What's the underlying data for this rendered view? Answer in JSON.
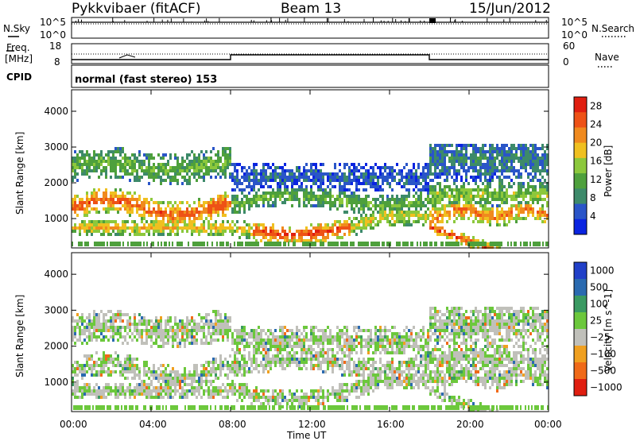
{
  "header": {
    "station": "Pykkvibaer (fitACF)",
    "beam": "Beam 13",
    "date": "15/Jun/2012"
  },
  "strips": {
    "nsky_label": "N.Sky",
    "nsearch_label": "N.Search",
    "freq_label": "Freq.",
    "freq_unit": "[MHz]",
    "nave_label": "Nave",
    "cpid_label": "CPID",
    "cpid_text": "normal (fast stereo) 153",
    "noise_ticks": [
      "10^5",
      "10^0"
    ],
    "freq_ticks": [
      "18",
      "8"
    ],
    "nave_ticks": [
      "60",
      "0"
    ]
  },
  "time_axis": {
    "label": "Time UT",
    "ticks": [
      "00:00",
      "04:00",
      "08:00",
      "12:00",
      "16:00",
      "20:00",
      "00:00"
    ]
  },
  "chart_data": [
    {
      "type": "heatmap",
      "title": "",
      "xlabel": "Time UT",
      "ylabel": "Slant Range [km]",
      "x_range": [
        "00:00",
        "24:00"
      ],
      "ylim": [
        180,
        4600
      ],
      "yticks": [
        1000,
        2000,
        3000,
        4000
      ],
      "colorbar": {
        "label": "Power [dB]",
        "ticks": [
          4,
          8,
          12,
          16,
          20,
          24,
          28
        ],
        "range": [
          0,
          30
        ],
        "colors": [
          "#0a24e0",
          "#2a55c8",
          "#3d8a6a",
          "#4ea03c",
          "#8cc83c",
          "#f0c020",
          "#f08a1e",
          "#ee5216",
          "#e01e10"
        ]
      },
      "echo_bands": [
        {
          "name": "",
          "t_start": 0.0,
          "t_end": 8.0,
          "range_km": 1400,
          "power_db": 24
        },
        {
          "name": "",
          "t_start": 8.5,
          "t_end": 14.0,
          "range_km": 600,
          "power_db": 26
        },
        {
          "name": "",
          "t_start": 8.5,
          "t_end": 18.0,
          "range_km": 1500,
          "power_db": 14
        },
        {
          "name": "",
          "t_start": 18.0,
          "t_end": 24.0,
          "range_km": 1200,
          "power_db": 22
        }
      ]
    },
    {
      "type": "heatmap",
      "title": "",
      "xlabel": "Time UT",
      "ylabel": "Slant Range [km]",
      "x_range": [
        "00:00",
        "24:00"
      ],
      "ylim": [
        180,
        4600
      ],
      "yticks": [
        1000,
        2000,
        3000,
        4000
      ],
      "colorbar": {
        "label": "Velocity [m s^-1]",
        "ticks": [
          1000,
          500,
          100,
          25,
          -25,
          -100,
          -500,
          -1000
        ],
        "colors": [
          "#2140c8",
          "#2a6ab0",
          "#3a9a62",
          "#6cc83c",
          "#c0c0ba",
          "#f0a020",
          "#f06a18",
          "#e01e10"
        ]
      },
      "dominant_velocity": "-25 to 25 (ground scatter, grey)"
    }
  ]
}
